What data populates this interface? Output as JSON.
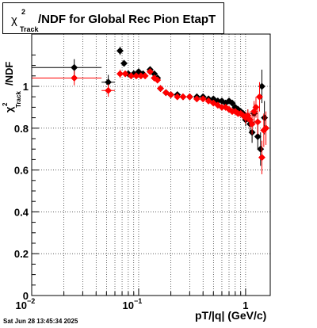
{
  "title": {
    "chi": "χ",
    "sup": "2",
    "sub": "Track",
    "main": "/NDF for Global Rec Pion EtapT"
  },
  "ylabel": {
    "chi": "χ",
    "sup": "2",
    "sub": "Track",
    "rest": "/NDF"
  },
  "timestamp": "Sat Jun 28 13:45:34 2025",
  "colors": {
    "series_black": "#000000",
    "series_red": "#ff0000",
    "grid": "#000000"
  },
  "chart_data": {
    "type": "scatter",
    "title": "χ²_Track/NDF for Global Rec Pion EtapT",
    "xlabel": "pT/|q| (GeV/c)",
    "ylabel": "χ²_Track/NDF",
    "xscale": "log",
    "xlim": [
      0.01,
      1.7
    ],
    "ylim": [
      0,
      1.25
    ],
    "y_ticks": [
      "0",
      "0.2",
      "0.4",
      "0.6",
      "0.8",
      "1"
    ],
    "x_ticks": [
      "10",
      "10",
      "1"
    ],
    "x_tick_exponents": [
      "−2",
      "−1",
      ""
    ],
    "grid": true,
    "series": [
      {
        "color": "black",
        "points": [
          {
            "x": 0.025,
            "y": 1.09,
            "xlo": 0.01,
            "xhi": 0.045,
            "err": 0.04
          },
          {
            "x": 0.052,
            "y": 1.02,
            "xlo": 0.045,
            "xhi": 0.06,
            "err": 0.035
          },
          {
            "x": 0.067,
            "y": 1.17,
            "err": 0.02
          },
          {
            "x": 0.073,
            "y": 1.11,
            "err": 0.015
          },
          {
            "x": 0.08,
            "y": 1.06
          },
          {
            "x": 0.09,
            "y": 1.06
          },
          {
            "x": 0.1,
            "y": 1.07
          },
          {
            "x": 0.11,
            "y": 1.06
          },
          {
            "x": 0.128,
            "y": 1.08
          },
          {
            "x": 0.14,
            "y": 1.06
          },
          {
            "x": 0.15,
            "y": 1.04
          },
          {
            "x": 0.16,
            "y": 0.99
          },
          {
            "x": 0.18,
            "y": 0.97
          },
          {
            "x": 0.2,
            "y": 0.96
          },
          {
            "x": 0.23,
            "y": 0.96
          },
          {
            "x": 0.26,
            "y": 0.95
          },
          {
            "x": 0.3,
            "y": 0.95
          },
          {
            "x": 0.35,
            "y": 0.95
          },
          {
            "x": 0.4,
            "y": 0.95
          },
          {
            "x": 0.45,
            "y": 0.94
          },
          {
            "x": 0.5,
            "y": 0.94
          },
          {
            "x": 0.55,
            "y": 0.93
          },
          {
            "x": 0.6,
            "y": 0.93
          },
          {
            "x": 0.65,
            "y": 0.92
          },
          {
            "x": 0.7,
            "y": 0.93
          },
          {
            "x": 0.75,
            "y": 0.92
          },
          {
            "x": 0.8,
            "y": 0.9
          },
          {
            "x": 0.85,
            "y": 0.89
          },
          {
            "x": 0.9,
            "y": 0.88
          },
          {
            "x": 0.95,
            "y": 0.87
          },
          {
            "x": 1.0,
            "y": 0.84,
            "err": 0.03
          },
          {
            "x": 1.05,
            "y": 0.86,
            "err": 0.03
          },
          {
            "x": 1.1,
            "y": 0.82,
            "err": 0.04
          },
          {
            "x": 1.15,
            "y": 0.78,
            "err": 0.05
          },
          {
            "x": 1.2,
            "y": 0.87,
            "err": 0.05
          },
          {
            "x": 1.3,
            "y": 0.76,
            "err": 0.06
          },
          {
            "x": 1.38,
            "y": 0.7,
            "err": 0.08
          },
          {
            "x": 1.42,
            "y": 1.0,
            "err": 0.08
          },
          {
            "x": 1.5,
            "y": 0.85,
            "err": 0.08
          }
        ]
      },
      {
        "color": "red",
        "points": [
          {
            "x": 0.025,
            "y": 1.04,
            "xlo": 0.01,
            "xhi": 0.045,
            "err": 0.035
          },
          {
            "x": 0.052,
            "y": 0.98,
            "xlo": 0.045,
            "xhi": 0.06,
            "err": 0.03
          },
          {
            "x": 0.067,
            "y": 1.06,
            "err": 0.02
          },
          {
            "x": 0.075,
            "y": 1.06
          },
          {
            "x": 0.085,
            "y": 1.05
          },
          {
            "x": 0.095,
            "y": 1.05
          },
          {
            "x": 0.105,
            "y": 1.05
          },
          {
            "x": 0.115,
            "y": 1.05
          },
          {
            "x": 0.128,
            "y": 1.07
          },
          {
            "x": 0.14,
            "y": 1.04
          },
          {
            "x": 0.15,
            "y": 1.03
          },
          {
            "x": 0.16,
            "y": 0.99
          },
          {
            "x": 0.18,
            "y": 0.97
          },
          {
            "x": 0.2,
            "y": 0.96
          },
          {
            "x": 0.23,
            "y": 0.95
          },
          {
            "x": 0.26,
            "y": 0.95
          },
          {
            "x": 0.3,
            "y": 0.95
          },
          {
            "x": 0.35,
            "y": 0.94
          },
          {
            "x": 0.4,
            "y": 0.94
          },
          {
            "x": 0.45,
            "y": 0.93
          },
          {
            "x": 0.5,
            "y": 0.92
          },
          {
            "x": 0.55,
            "y": 0.91
          },
          {
            "x": 0.6,
            "y": 0.9
          },
          {
            "x": 0.65,
            "y": 0.9
          },
          {
            "x": 0.7,
            "y": 0.89
          },
          {
            "x": 0.75,
            "y": 0.88
          },
          {
            "x": 0.8,
            "y": 0.88
          },
          {
            "x": 0.85,
            "y": 0.87
          },
          {
            "x": 0.9,
            "y": 0.87
          },
          {
            "x": 0.95,
            "y": 0.86
          },
          {
            "x": 1.0,
            "y": 0.85,
            "err": 0.03
          },
          {
            "x": 1.05,
            "y": 0.86,
            "err": 0.03
          },
          {
            "x": 1.1,
            "y": 0.84,
            "err": 0.04
          },
          {
            "x": 1.15,
            "y": 0.82,
            "err": 0.05
          },
          {
            "x": 1.2,
            "y": 0.88,
            "err": 0.05
          },
          {
            "x": 1.25,
            "y": 0.9,
            "err": 0.05
          },
          {
            "x": 1.3,
            "y": 0.83,
            "err": 0.06
          },
          {
            "x": 1.35,
            "y": 0.95,
            "err": 0.07
          },
          {
            "x": 1.42,
            "y": 0.66,
            "err": 0.08
          },
          {
            "x": 1.48,
            "y": 0.79,
            "err": 0.08
          },
          {
            "x": 1.55,
            "y": 0.8,
            "err": 0.08
          }
        ]
      }
    ]
  }
}
